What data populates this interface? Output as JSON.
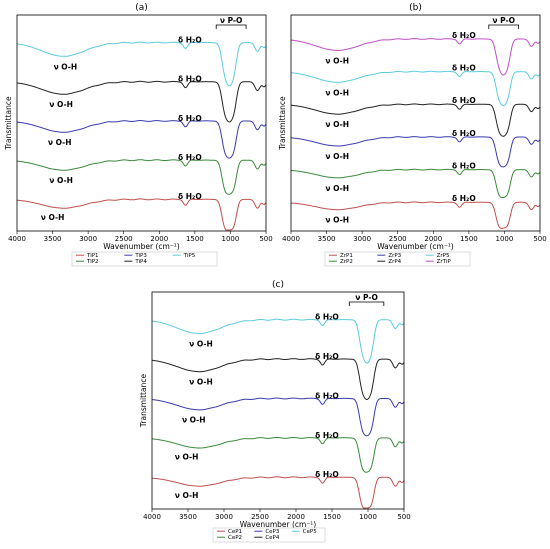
{
  "chart_data": [
    {
      "panel": "(a)",
      "type": "line",
      "xlabel": "Wavenumber (cm⁻¹)",
      "ylabel": "Transmittance",
      "xlim": [
        4000,
        500
      ],
      "xticks": [
        4000,
        3500,
        3000,
        2500,
        2000,
        1500,
        1000,
        500
      ],
      "x_reversed": true,
      "series": [
        {
          "name": "TiP1",
          "color": "#c0504d",
          "annotations": [
            "ν O-H",
            "δ H₂O"
          ]
        },
        {
          "name": "TiP2",
          "color": "#3a8a3a",
          "annotations": [
            "ν O-H",
            "δ H₂O"
          ]
        },
        {
          "name": "TiP3",
          "color": "#3a3ab0",
          "annotations": [
            "ν O-H",
            "δ H₂O"
          ]
        },
        {
          "name": "TiP4",
          "color": "#222222",
          "annotations": [
            "ν O-H",
            "δ H₂O"
          ]
        },
        {
          "name": "TiP5",
          "color": "#5ccbe0",
          "annotations": [
            "ν O-H",
            "δ H₂O"
          ]
        }
      ],
      "bracket_label": "ν P-O",
      "legend_position": "bottom"
    },
    {
      "panel": "(b)",
      "type": "line",
      "xlabel": "Wavenumber (cm⁻¹)",
      "ylabel": "Transmittance",
      "xlim": [
        4000,
        500
      ],
      "xticks": [
        4000,
        3500,
        3000,
        2500,
        2000,
        1500,
        1000,
        500
      ],
      "x_reversed": true,
      "series": [
        {
          "name": "ZrP1",
          "color": "#c0504d",
          "annotations": [
            "ν O-H",
            "δ H₂O"
          ]
        },
        {
          "name": "ZrP2",
          "color": "#3a8a3a",
          "annotations": [
            "ν O-H",
            "δ H₂O"
          ]
        },
        {
          "name": "ZrP3",
          "color": "#3a3ab0",
          "annotations": [
            "ν O-H",
            "δ H₂O"
          ]
        },
        {
          "name": "ZrP4",
          "color": "#222222",
          "annotations": [
            "ν O-H",
            "δ H₂O"
          ]
        },
        {
          "name": "ZrP5",
          "color": "#5ccbe0",
          "annotations": [
            "ν O-H",
            "δ H₂O"
          ]
        },
        {
          "name": "ZrTiP",
          "color": "#c04fc8",
          "annotations": [
            "ν O-H",
            "δ H₂O"
          ]
        }
      ],
      "bracket_label": "ν P-O",
      "legend_position": "bottom"
    },
    {
      "panel": "(c)",
      "type": "line",
      "xlabel": "Wavenumber (cm⁻¹)",
      "ylabel": "Transmittance",
      "xlim": [
        4000,
        500
      ],
      "xticks": [
        4000,
        3500,
        3000,
        2500,
        2000,
        1500,
        1000,
        500
      ],
      "x_reversed": true,
      "series": [
        {
          "name": "CeP1",
          "color": "#c0504d",
          "annotations": [
            "ν O-H",
            "δ H₂O"
          ]
        },
        {
          "name": "CeP2",
          "color": "#3a8a3a",
          "annotations": [
            "ν O-H",
            "δ H₂O"
          ]
        },
        {
          "name": "CeP3",
          "color": "#3a3ab0",
          "annotations": [
            "ν O-H",
            "δ H₂O"
          ]
        },
        {
          "name": "CeP4",
          "color": "#222222",
          "annotations": [
            "ν O-H",
            "δ H₂O"
          ]
        },
        {
          "name": "CeP5",
          "color": "#5ccbe0",
          "annotations": [
            "ν O-H",
            "δ H₂O"
          ]
        }
      ],
      "bracket_label": "ν P-O",
      "legend_position": "bottom"
    }
  ]
}
